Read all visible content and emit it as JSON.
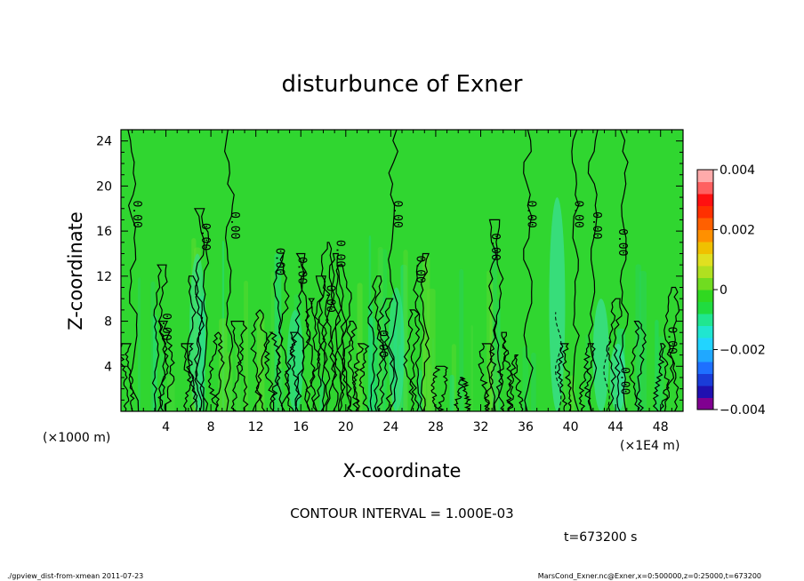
{
  "chart_data": {
    "type": "heatmap",
    "title": "disturbunce of Exner",
    "xlabel": "X-coordinate",
    "ylabel": "Z-coordinate",
    "x_unit": "(×1000 m)",
    "x_scale_note": "(×1E4 m)",
    "xlim": [
      0,
      50
    ],
    "ylim": [
      0,
      25
    ],
    "x_ticks": [
      4,
      8,
      12,
      16,
      20,
      24,
      28,
      32,
      36,
      40,
      44,
      48
    ],
    "y_ticks": [
      4,
      8,
      12,
      16,
      20,
      24
    ],
    "contour_interval_text": "CONTOUR INTERVAL = 1.000E-03",
    "time_text": "t=673200 s",
    "contour_labels": [
      {
        "text": "0.00",
        "x": 1.1,
        "z": 17.5
      },
      {
        "text": "0.00",
        "x": 3.7,
        "z": 7.5
      },
      {
        "text": "0.00",
        "x": 7.2,
        "z": 15.5
      },
      {
        "text": "0.00",
        "x": 9.8,
        "z": 16.5
      },
      {
        "text": "0.00",
        "x": 13.8,
        "z": 13.3
      },
      {
        "text": "0.00",
        "x": 15.8,
        "z": 12.5
      },
      {
        "text": "0.00",
        "x": 18.3,
        "z": 10.0
      },
      {
        "text": "0.00",
        "x": 19.2,
        "z": 14.0
      },
      {
        "text": "0.00",
        "x": 23.0,
        "z": 6.0
      },
      {
        "text": "0.00",
        "x": 24.3,
        "z": 17.5
      },
      {
        "text": "0.00",
        "x": 26.3,
        "z": 12.6
      },
      {
        "text": "0.00",
        "x": 33.0,
        "z": 14.6
      },
      {
        "text": "0.00",
        "x": 36.2,
        "z": 17.5
      },
      {
        "text": "0.00",
        "x": 40.4,
        "z": 17.5
      },
      {
        "text": "0.00",
        "x": 42.0,
        "z": 16.5
      },
      {
        "text": "0.00",
        "x": 44.3,
        "z": 15.0
      },
      {
        "text": "0.00",
        "x": 44.5,
        "z": 2.7
      },
      {
        "text": "0.00",
        "x": 48.7,
        "z": 6.3
      }
    ],
    "colorbar": {
      "min": -0.004,
      "max": 0.004,
      "tick_labels": [
        "0.004",
        "0.002",
        "0",
        "−0.002",
        "−0.004"
      ],
      "tick_values": [
        0.004,
        0.002,
        0,
        -0.002,
        -0.004
      ],
      "colors": [
        "#800090",
        "#2010b0",
        "#1a3cd8",
        "#1e70ff",
        "#20a8ff",
        "#22d4ff",
        "#20e6d0",
        "#20e690",
        "#20dc40",
        "#30d820",
        "#70dc20",
        "#b0e020",
        "#e0e020",
        "#f0c000",
        "#ff9000",
        "#ff6000",
        "#ff3000",
        "#ff1010",
        "#ff6060",
        "#ffaaaa"
      ]
    },
    "background_color": "#30d630"
  },
  "footer": {
    "left": "./gpview_dist-from-xmean  2011-07-23",
    "right": "MarsCond_Exner.nc@Exner,x=0:500000,z=0:25000,t=673200"
  }
}
